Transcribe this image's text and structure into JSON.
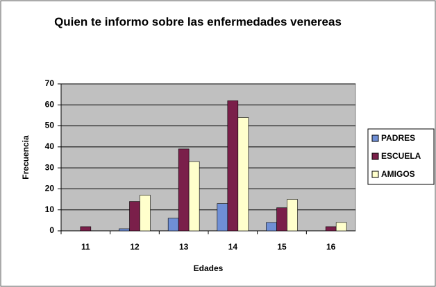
{
  "chart_data": {
    "type": "bar",
    "title": "Quien te informo sobre las enfermedades venereas",
    "x_label": "Edades",
    "y_label": "Frecuencia",
    "categories": [
      "11",
      "12",
      "13",
      "14",
      "15",
      "16"
    ],
    "series": [
      {
        "name": "PADRES",
        "color": "#6f8fd6",
        "values": [
          0,
          1,
          6,
          13,
          4,
          0
        ]
      },
      {
        "name": "ESCUELA",
        "color": "#7a1f4a",
        "values": [
          2,
          14,
          39,
          62,
          11,
          2
        ]
      },
      {
        "name": "AMIGOS",
        "color": "#ffffcc",
        "values": [
          0,
          17,
          33,
          54,
          15,
          4
        ]
      }
    ],
    "ylim": [
      0,
      70
    ],
    "yticks": [
      0,
      10,
      20,
      30,
      40,
      50,
      60,
      70
    ],
    "grid": true,
    "legend": "right"
  }
}
